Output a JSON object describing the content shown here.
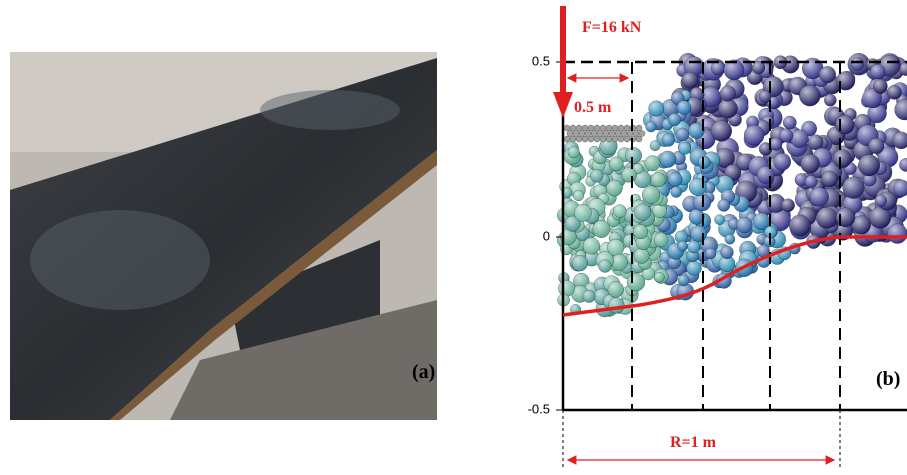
{
  "panel_a": {
    "label": "(a)"
  },
  "panel_b": {
    "label": "(b)",
    "force": "F=16 kN",
    "width_label": "0.5 m",
    "radius_label": "R=1 m",
    "axis_labels": [
      "0.5",
      "0",
      "-0.5"
    ]
  }
}
